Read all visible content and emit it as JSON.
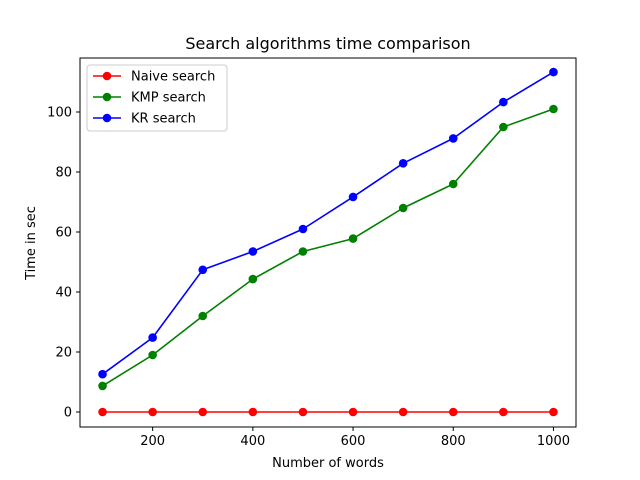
{
  "chart_data": {
    "type": "line",
    "title": "Search algorithms time comparison",
    "xlabel": "Number of words",
    "ylabel": "Time in sec",
    "x": [
      100,
      200,
      300,
      400,
      500,
      600,
      700,
      800,
      900,
      1000
    ],
    "xlim": [
      55,
      1045
    ],
    "ylim": [
      -5,
      118
    ],
    "xticks": [
      200,
      400,
      600,
      800,
      1000
    ],
    "yticks": [
      0,
      20,
      40,
      60,
      80,
      100
    ],
    "grid": false,
    "legend_position": "upper-left",
    "series": [
      {
        "name": "Naive search",
        "color": "#ff0000",
        "values": [
          0,
          0,
          0,
          0,
          0,
          0,
          0,
          0,
          0,
          0
        ]
      },
      {
        "name": "KMP search",
        "color": "#008000",
        "values": [
          8.7,
          19,
          32,
          44.3,
          53.5,
          57.8,
          68,
          76,
          95,
          101
        ]
      },
      {
        "name": "KR search",
        "color": "#0000ff",
        "values": [
          12.6,
          24.8,
          47.4,
          53.5,
          61,
          71.7,
          82.9,
          91.2,
          103.3,
          113.3
        ]
      }
    ]
  }
}
